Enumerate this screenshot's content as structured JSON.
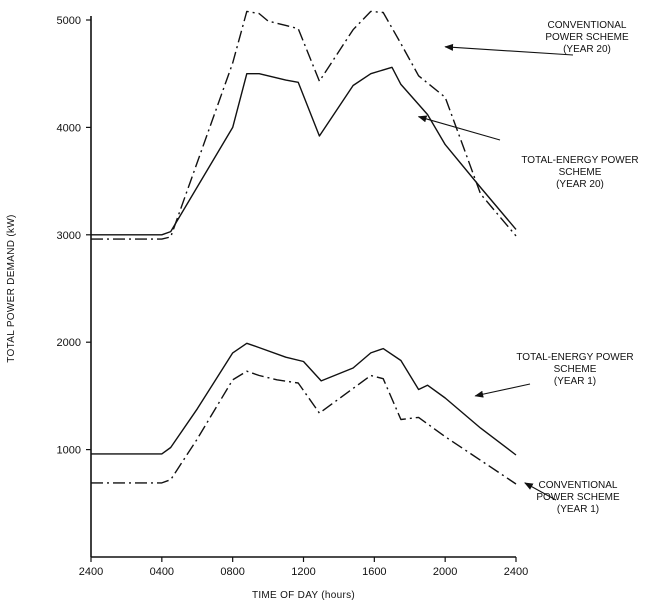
{
  "chart_data": {
    "type": "line",
    "title": "",
    "xlabel": "TIME OF DAY (hours)",
    "ylabel": "TOTAL POWER DEMAND (kW)",
    "xlim": [
      0,
      24
    ],
    "ylim": [
      0,
      5000
    ],
    "x_tick_values": [
      0,
      4,
      8,
      12,
      16,
      20,
      24
    ],
    "x_tick_labels": [
      "2400",
      "0400",
      "0800",
      "1200",
      "1600",
      "2000",
      "2400"
    ],
    "y_ticks": [
      1000,
      2000,
      3000,
      4000,
      5000
    ],
    "grid": false,
    "legend": "none",
    "series": [
      {
        "line_style": "dashdot",
        "x": [
          0,
          4,
          4.5,
          8,
          8.8,
          9.5,
          10,
          11,
          11.7,
          12.9,
          14.8,
          15.8,
          16.5,
          17.5,
          18.5,
          20,
          22,
          24
        ],
        "y": [
          2960,
          2960,
          2980,
          4600,
          5080,
          5060,
          4990,
          4950,
          4920,
          4430,
          4910,
          5080,
          5070,
          4780,
          4480,
          4280,
          3380,
          2990
        ]
      },
      {
        "line_style": "solid",
        "x": [
          0,
          4,
          4.5,
          8,
          8.8,
          9.5,
          10,
          11,
          11.7,
          12.9,
          14.8,
          15.8,
          17,
          17.5,
          19,
          20,
          22,
          24
        ],
        "y": [
          3000,
          3000,
          3030,
          4000,
          4500,
          4500,
          4480,
          4440,
          4420,
          3920,
          4390,
          4500,
          4560,
          4400,
          4120,
          3840,
          3440,
          3050
        ]
      },
      {
        "line_style": "solid",
        "x": [
          0,
          2,
          4,
          4.5,
          6,
          8,
          8.8,
          9.5,
          11,
          12,
          13,
          14.8,
          15.8,
          16.5,
          17.5,
          18.5,
          19,
          20,
          22,
          24
        ],
        "y": [
          960,
          960,
          960,
          1020,
          1380,
          1900,
          1990,
          1950,
          1860,
          1820,
          1640,
          1760,
          1900,
          1940,
          1830,
          1560,
          1600,
          1480,
          1200,
          950
        ]
      },
      {
        "line_style": "dashdot",
        "x": [
          0,
          2,
          4,
          4.5,
          6,
          8,
          8.8,
          9.5,
          10.5,
          11.7,
          12.9,
          14.8,
          15.8,
          16.5,
          17.5,
          18.5,
          20,
          22,
          24
        ],
        "y": [
          690,
          690,
          690,
          720,
          1100,
          1650,
          1730,
          1690,
          1650,
          1620,
          1340,
          1570,
          1690,
          1660,
          1280,
          1300,
          1120,
          900,
          680
        ]
      }
    ],
    "annotations": [
      {
        "lines": [
          "CONVENTIONAL",
          "POWER SCHEME",
          "(YEAR 20)"
        ],
        "target": [
          20,
          4750
        ]
      },
      {
        "lines": [
          "TOTAL-ENERGY POWER",
          "SCHEME",
          "(YEAR 20)"
        ],
        "target": [
          18.5,
          4100
        ]
      },
      {
        "lines": [
          "TOTAL-ENERGY POWER",
          "SCHEME",
          "(YEAR 1)"
        ],
        "target": [
          21.7,
          1500
        ]
      },
      {
        "lines": [
          "CONVENTIONAL",
          "POWER SCHEME",
          "(YEAR 1)"
        ],
        "target": [
          24.5,
          690
        ]
      }
    ]
  }
}
